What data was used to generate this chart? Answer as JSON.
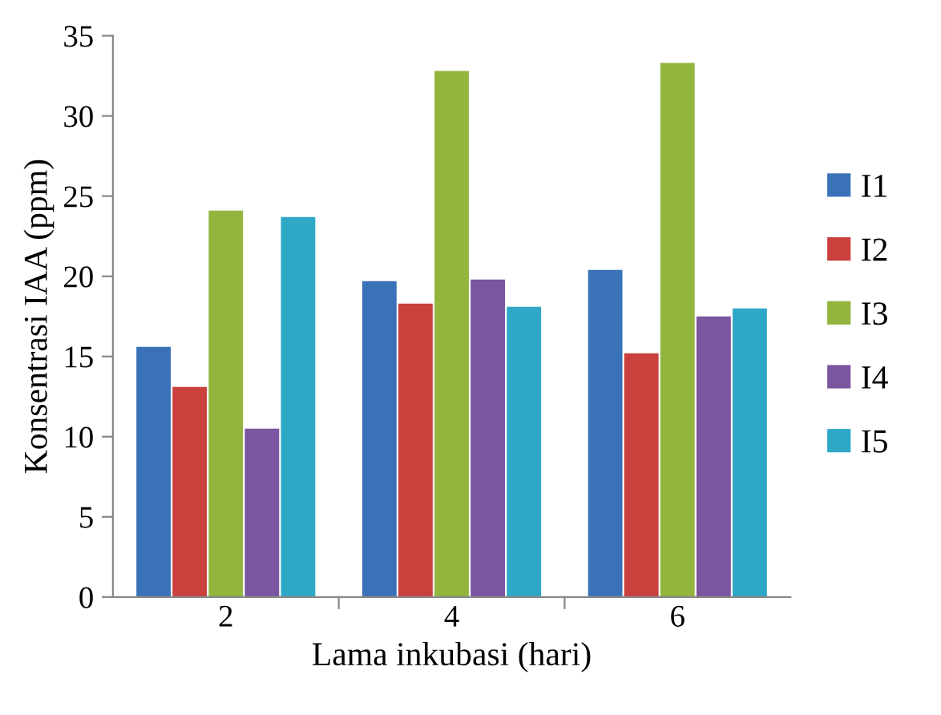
{
  "chart_data": {
    "type": "bar",
    "xlabel": "Lama inkubasi (hari)",
    "ylabel": "Konsentrasi IAA (ppm)",
    "categories": [
      "2",
      "4",
      "6"
    ],
    "series": [
      {
        "name": "I1",
        "color": "#3a72b8",
        "values": [
          15.6,
          19.7,
          20.4
        ]
      },
      {
        "name": "I2",
        "color": "#c9403c",
        "values": [
          13.1,
          18.3,
          15.2
        ]
      },
      {
        "name": "I3",
        "color": "#92b53e",
        "values": [
          24.1,
          32.8,
          33.3
        ]
      },
      {
        "name": "I4",
        "color": "#7a55a0",
        "values": [
          10.5,
          19.8,
          17.5
        ]
      },
      {
        "name": "I5",
        "color": "#2fa8c8",
        "values": [
          23.7,
          18.1,
          18.0
        ]
      }
    ],
    "ylim": [
      0,
      35
    ],
    "yticks": [
      0,
      5,
      10,
      15,
      20,
      25,
      30,
      35
    ],
    "grid": false,
    "legend": "right"
  }
}
